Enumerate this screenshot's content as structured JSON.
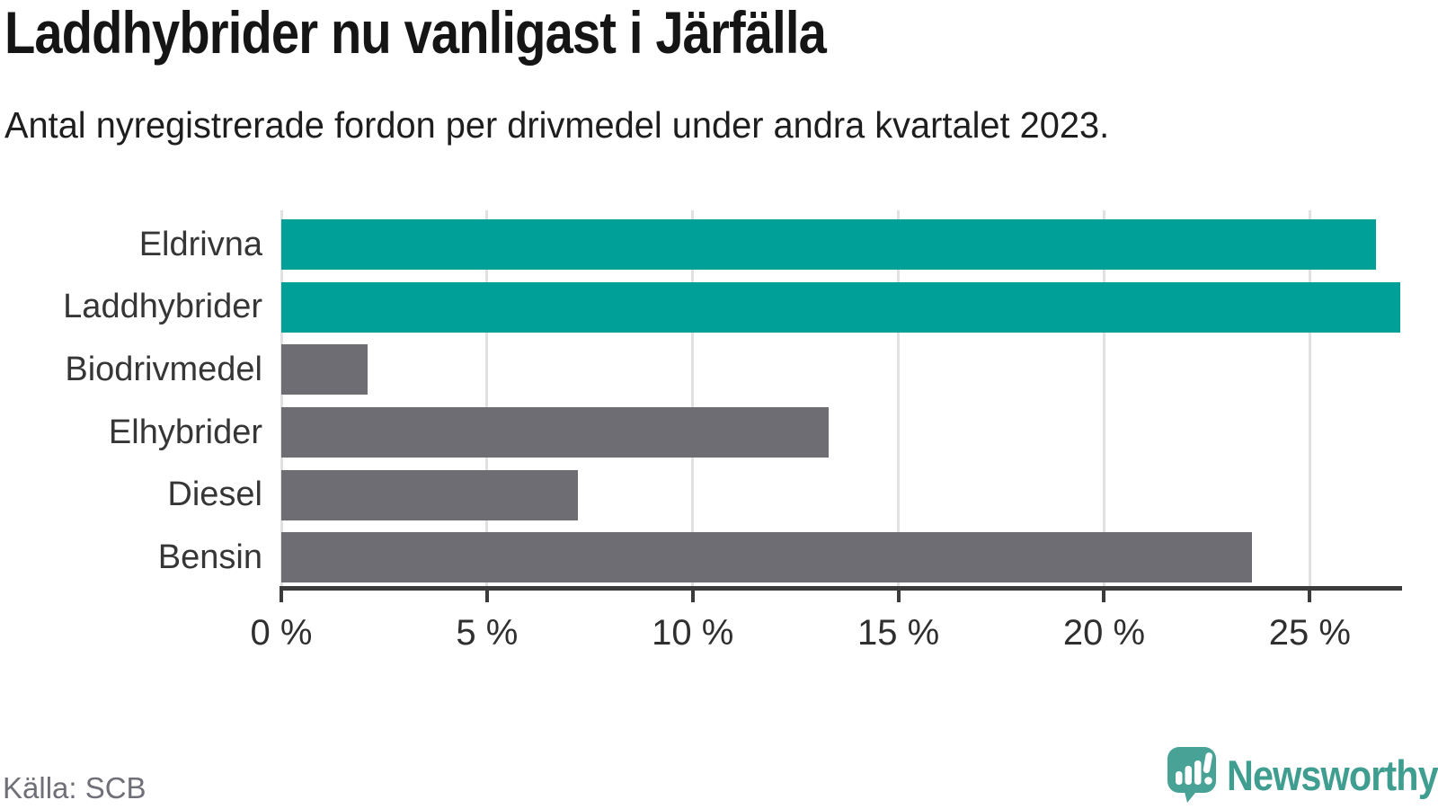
{
  "header": {
    "title": "Laddhybrider nu vanligast i Järfälla",
    "subtitle": "Antal nyregistrerade fordon per drivmedel under andra kvartalet 2023."
  },
  "chart_data": {
    "type": "bar",
    "orientation": "horizontal",
    "title": "Laddhybrider nu vanligast i Järfälla",
    "subtitle": "Antal nyregistrerade fordon per drivmedel under andra kvartalet 2023.",
    "categories": [
      "Eldrivna",
      "Laddhybrider",
      "Biodrivmedel",
      "Elhybrider",
      "Diesel",
      "Bensin"
    ],
    "values": [
      26.6,
      27.2,
      2.1,
      13.3,
      7.2,
      23.6
    ],
    "unit": "%",
    "bar_colors": [
      "#00a099",
      "#00a099",
      "#6e6d73",
      "#6e6d73",
      "#6e6d73",
      "#6e6d73"
    ],
    "highlight_color": "#00a099",
    "default_color": "#6e6d73",
    "xlim": [
      0,
      27.2
    ],
    "x_tick_values": [
      0,
      5,
      10,
      15,
      20,
      25
    ],
    "x_tick_labels": [
      "0 %",
      "5 %",
      "10 %",
      "15 %",
      "20 %",
      "25 %"
    ],
    "grid": true,
    "gridline_color": "#e1e1e1",
    "axis_color": "#3b3b3b",
    "legend": "none"
  },
  "footer": {
    "source": "Källa: SCB",
    "brand": "Newsworthy",
    "brand_color": "#3f9e90",
    "brand_icon": "newsworthy-speech-bubble-bar-chart-icon",
    "brand_icon_color": "#48a296"
  }
}
